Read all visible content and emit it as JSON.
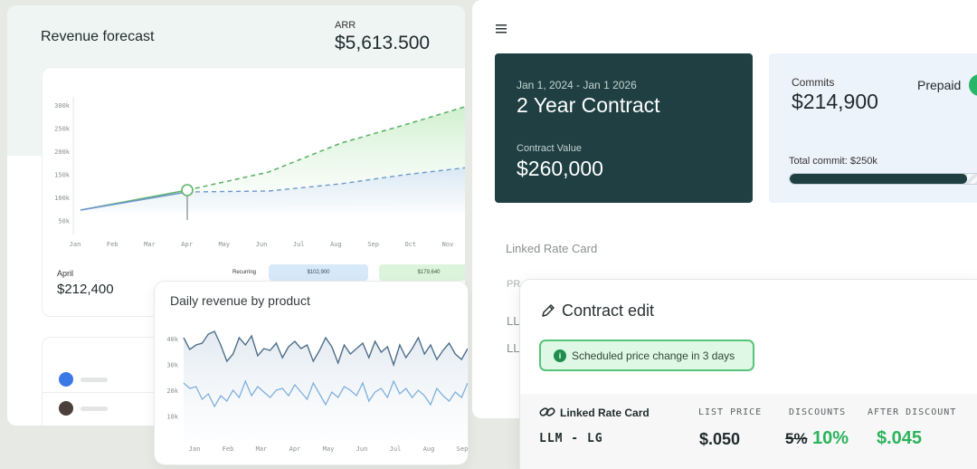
{
  "revenue_forecast": {
    "title": "Revenue forecast",
    "arr_label": "ARR",
    "arr_value": "$5,613.500",
    "y_ticks": [
      "300k",
      "250k",
      "200k",
      "150k",
      "100k",
      "50k"
    ],
    "x_ticks": [
      "Jan",
      "Feb",
      "Mar",
      "Apr",
      "May",
      "Jun",
      "Jul",
      "Aug",
      "Sep",
      "Oct",
      "Nov"
    ],
    "selected_month": "April",
    "selected_value": "$212,400",
    "recurring_label": "Recurring",
    "pill_a": "$102,900",
    "pill_b": "$179,640"
  },
  "daily_revenue": {
    "title": "Daily revenue by product",
    "y_ticks": [
      "40k",
      "30k",
      "20k",
      "10k"
    ],
    "x_ticks": [
      "Jan",
      "Feb",
      "Mar",
      "Apr",
      "May",
      "Jun",
      "Jul",
      "Aug",
      "Sep"
    ]
  },
  "contract": {
    "date_range": "Jan 1, 2024 - Jan 1 2026",
    "title": "2 Year Contract",
    "value_label": "Contract Value",
    "value": "$260,000"
  },
  "commits": {
    "label": "Commits",
    "value": "$214,900",
    "prepaid_label": "Prepaid",
    "total_commit": "Total commit: $250k",
    "progress_fraction": 0.86
  },
  "linked_rate_card_bg": {
    "label": "Linked Rate Card",
    "pr_label": "PR",
    "row1": "LL",
    "row2": "LL"
  },
  "contract_edit": {
    "title": "Contract edit",
    "banner": "Scheduled price change in 3 days",
    "rate_card_label": "Linked Rate Card",
    "rate_card_name": "LLM - LG",
    "list_price_head": "LIST PRICE",
    "discounts_head": "DISCOUNTS",
    "after_discount_head": "AFTER DISCOUNT",
    "list_price": "$.050",
    "old_discount": "5%",
    "new_discount": "10%",
    "after_discount": "$.045"
  },
  "colors": {
    "brand_dark": "#1f3f42",
    "accent_green": "#2db35d",
    "forecast_green": "#5fb36a",
    "forecast_blue": "#6f97cf"
  }
}
